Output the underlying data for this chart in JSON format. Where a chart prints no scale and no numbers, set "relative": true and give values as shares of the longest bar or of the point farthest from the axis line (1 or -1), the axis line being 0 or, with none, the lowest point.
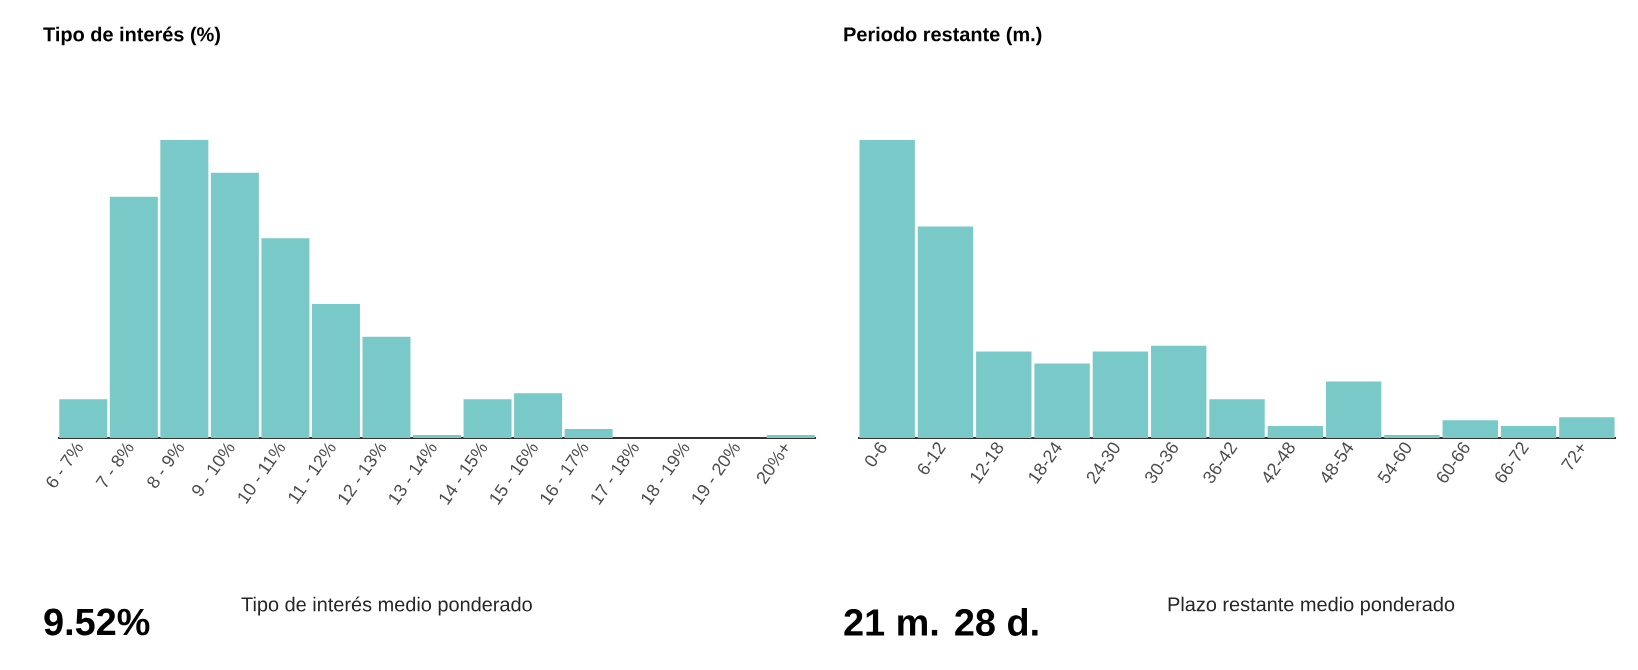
{
  "chart_data": [
    {
      "type": "bar",
      "title": "Tipo de interés (%)",
      "relative": true,
      "color": "#79c9c8",
      "categories": [
        "6 - 7%",
        "7 - 8%",
        "8 - 9%",
        "9 - 10%",
        "10 - 11%",
        "11 - 12%",
        "12 - 13%",
        "13 - 14%",
        "14 - 15%",
        "15 - 16%",
        "16 - 17%",
        "17 - 18%",
        "18 - 19%",
        "19 - 20%",
        "20%+"
      ],
      "values": [
        0.13,
        0.81,
        1,
        0.89,
        0.67,
        0.45,
        0.34,
        0.01,
        0.13,
        0.15,
        0.03,
        null,
        null,
        null,
        0.01
      ],
      "annotations": [
        "9.52%",
        "Tipo de interés medio ponderado"
      ]
    },
    {
      "type": "bar",
      "title": "Periodo restante (m.)",
      "relative": true,
      "color": "#79c9c8",
      "categories": [
        "0-6",
        "6-12",
        "12-18",
        "18-24",
        "24-30",
        "30-36",
        "36-42",
        "42-48",
        "48-54",
        "54-60",
        "60-66",
        "66-72",
        "72+"
      ],
      "values": [
        1,
        0.71,
        0.29,
        0.25,
        0.29,
        0.31,
        0.13,
        0.04,
        0.19,
        0.01,
        0.06,
        0.04,
        0.07
      ],
      "annotations": [
        "21 m. 28 d.",
        "Plazo restante medio ponderado"
      ]
    }
  ]
}
